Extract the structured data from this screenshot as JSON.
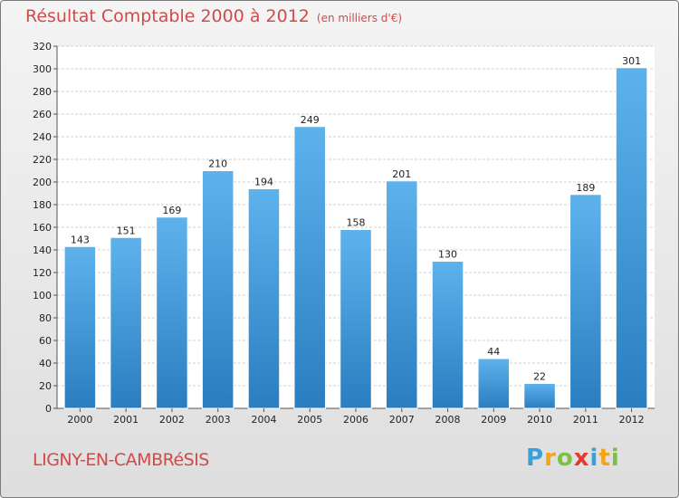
{
  "chart_data": {
    "type": "bar",
    "title": "Résultat Comptable 2000 à 2012",
    "subtitle": "(en milliers d'€)",
    "categories": [
      "2000",
      "2001",
      "2002",
      "2003",
      "2004",
      "2005",
      "2006",
      "2007",
      "2008",
      "2009",
      "2010",
      "2011",
      "2012"
    ],
    "values": [
      143,
      151,
      169,
      210,
      194,
      249,
      158,
      201,
      130,
      44,
      22,
      189,
      301
    ],
    "ylim": [
      0,
      320
    ],
    "yticks": [
      0,
      20,
      40,
      60,
      80,
      100,
      120,
      140,
      160,
      180,
      200,
      220,
      240,
      260,
      280,
      300,
      320
    ],
    "grid": true,
    "xlabel": "",
    "ylabel": ""
  },
  "commune": "LIGNY-EN-CAMBRéSIS",
  "logo": {
    "letters": [
      "P",
      "r",
      "o",
      "x",
      "i",
      "t",
      "i"
    ],
    "colors": [
      "#3aa0d8",
      "#f2a51a",
      "#7cc142",
      "#e8392f",
      "#3aa0d8",
      "#f2a51a",
      "#7cc142"
    ]
  },
  "colors": {
    "bar_top": "#5eb2ec",
    "bar_bottom": "#2a7ec0",
    "title": "#d14a4a"
  }
}
